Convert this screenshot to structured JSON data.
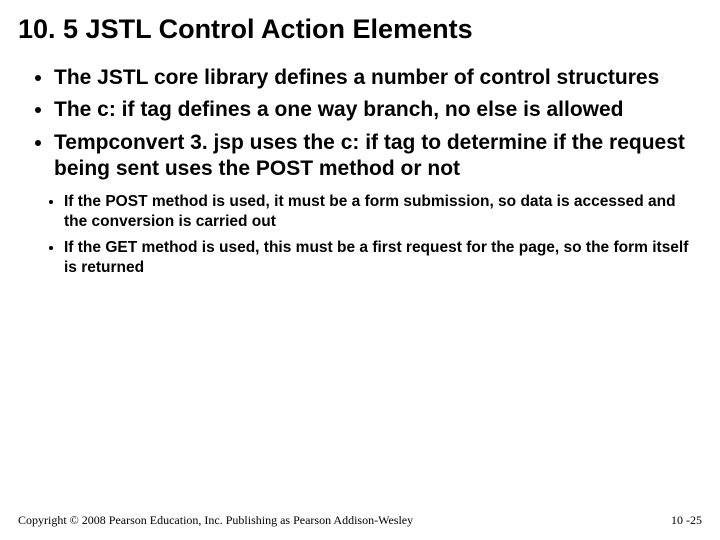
{
  "title": "10. 5 JSTL Control Action Elements",
  "bullets": {
    "b1": "The JSTL core library defines a number of control structures",
    "b2": "The c: if tag defines a one way branch, no else is allowed",
    "b3": "Tempconvert 3. jsp uses the c: if tag to determine if the request being sent uses the POST method or not",
    "sub1": "If the POST method is used, it must be a form submission, so data is accessed and the conversion is carried out",
    "sub2": "If the GET method is used, this must be a first request for the page, so the form itself is returned"
  },
  "footer": {
    "copyright": "Copyright © 2008 Pearson Education, Inc. Publishing as Pearson Addison-Wesley",
    "pagenum": "10 -25"
  }
}
